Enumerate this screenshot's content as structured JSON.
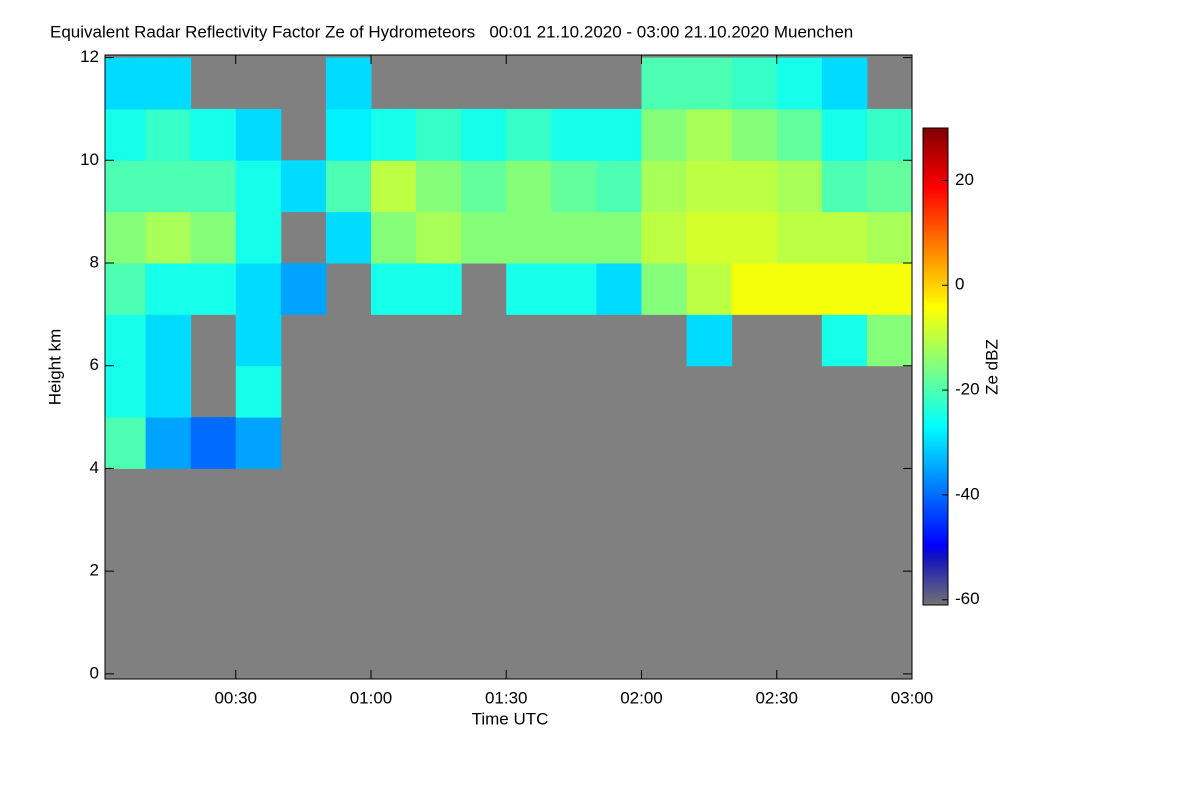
{
  "chart_data": {
    "type": "heatmap",
    "title": "Equivalent Radar Reflectivity Factor Ze of Hydrometeors   00:01 21.10.2020 - 03:00 21.10.2020 Muenchen",
    "x_label": "Time UTC",
    "y_label": "Height km",
    "colorbar_label": "Ze dBZ",
    "colormap": "jet",
    "xlim": [
      1,
      180
    ],
    "xticks": [
      {
        "value": 30,
        "label": "00:30"
      },
      {
        "value": 60,
        "label": "01:00"
      },
      {
        "value": 90,
        "label": "01:30"
      },
      {
        "value": 120,
        "label": "02:00"
      },
      {
        "value": 150,
        "label": "02:30"
      },
      {
        "value": 180,
        "label": "03:00"
      }
    ],
    "ylim": [
      -0.1,
      12.05
    ],
    "yticks": [
      0,
      2,
      4,
      6,
      8,
      10,
      12
    ],
    "clim": [
      -61,
      30
    ],
    "cticks": [
      -60,
      -40,
      -20,
      0,
      20
    ],
    "x_bins": [
      0,
      10,
      20,
      30,
      40,
      50,
      60,
      70,
      80,
      90,
      100,
      110,
      120,
      130,
      140,
      150,
      160,
      170,
      180
    ],
    "y_bins": [
      0,
      1,
      2,
      3,
      4,
      5,
      6,
      7,
      8,
      9,
      10,
      11,
      12
    ],
    "z": [
      [
        null,
        null,
        null,
        null,
        null,
        null,
        null,
        null,
        null,
        null,
        null,
        null,
        null,
        null,
        null,
        null,
        null,
        null
      ],
      [
        null,
        null,
        null,
        null,
        null,
        null,
        null,
        null,
        null,
        null,
        null,
        null,
        null,
        null,
        null,
        null,
        null,
        null
      ],
      [
        null,
        null,
        null,
        null,
        null,
        null,
        null,
        null,
        null,
        null,
        null,
        null,
        null,
        null,
        null,
        null,
        null,
        null
      ],
      [
        null,
        null,
        null,
        null,
        null,
        null,
        null,
        null,
        null,
        null,
        null,
        null,
        null,
        null,
        null,
        null,
        null,
        null
      ],
      [
        -20,
        -35,
        -40,
        -35,
        null,
        null,
        null,
        null,
        null,
        null,
        null,
        null,
        null,
        null,
        null,
        null,
        null,
        null
      ],
      [
        -25,
        -30,
        null,
        -25,
        null,
        null,
        null,
        null,
        null,
        null,
        null,
        null,
        null,
        null,
        null,
        null,
        null,
        null
      ],
      [
        -25,
        -30,
        null,
        -30,
        null,
        null,
        null,
        null,
        null,
        null,
        null,
        null,
        null,
        -30,
        null,
        null,
        -25,
        -15
      ],
      [
        -20,
        -25,
        -25,
        -30,
        -35,
        null,
        -25,
        -25,
        null,
        -25,
        -25,
        -30,
        -15,
        -10,
        -5,
        -5,
        -5,
        -5
      ],
      [
        -15,
        -12,
        -15,
        -25,
        null,
        -30,
        -15,
        -12,
        -15,
        -15,
        -15,
        -15,
        -10,
        -8,
        -8,
        -10,
        -10,
        -12
      ],
      [
        -20,
        -20,
        -20,
        -25,
        -30,
        -20,
        -10,
        -15,
        -18,
        -15,
        -18,
        -20,
        -12,
        -10,
        -10,
        -12,
        -20,
        -18
      ],
      [
        -25,
        -22,
        -25,
        -30,
        null,
        -28,
        -25,
        -22,
        -25,
        -22,
        -25,
        -25,
        -15,
        -12,
        -15,
        -18,
        -25,
        -22
      ],
      [
        -30,
        -30,
        null,
        null,
        null,
        -30,
        null,
        null,
        null,
        null,
        null,
        null,
        -20,
        -20,
        -22,
        -25,
        -30,
        null
      ]
    ]
  }
}
